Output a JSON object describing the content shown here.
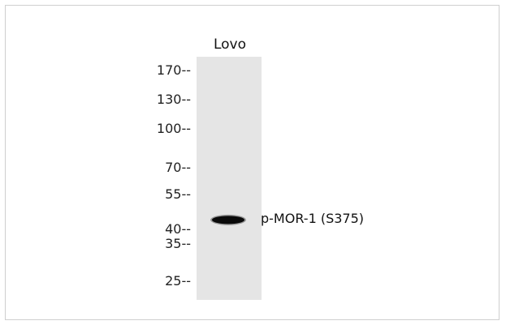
{
  "figure": {
    "lanes": [
      {
        "label": "Lovo"
      }
    ],
    "markers": [
      {
        "label": "170--",
        "kda": 170
      },
      {
        "label": "130--",
        "kda": 130
      },
      {
        "label": "100--",
        "kda": 100
      },
      {
        "label": "70--",
        "kda": 70
      },
      {
        "label": "55--",
        "kda": 55
      },
      {
        "label": "40--",
        "kda": 40
      },
      {
        "label": "35--",
        "kda": 35
      },
      {
        "label": "25--",
        "kda": 25
      }
    ],
    "band": {
      "label": "p-MOR-1 (S375)",
      "kda": 44
    },
    "colors": {
      "lane_background": "#e5e5e5",
      "band": "#0a0a0a",
      "frame_border": "#cfcfcf"
    }
  }
}
